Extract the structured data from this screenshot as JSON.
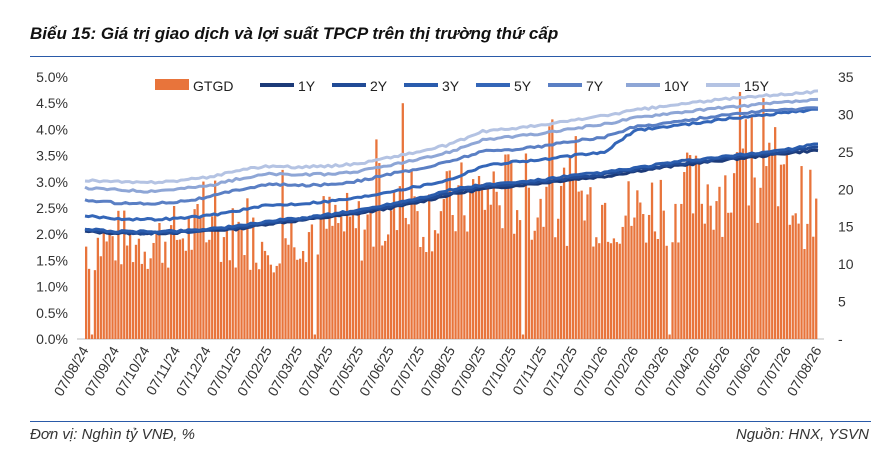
{
  "title": "Biểu 15: Giá trị giao dịch và lợi suất TPCP trên thị trường thứ cấp",
  "footer": {
    "unit": "Đơn vị: Nghìn tỷ VNĐ, %",
    "source": "Nguồn: HNX, YSVN"
  },
  "colors": {
    "bars": "#e8743b",
    "1Y": "#1c3a78",
    "2Y": "#214b96",
    "3Y": "#2a5cad",
    "5Y": "#3466b8",
    "7Y": "#5a7fc4",
    "10Y": "#8ea6d6",
    "15Y": "#b4c3e3"
  },
  "chart_data": {
    "type": "bar+line",
    "x_ticks": [
      "07/08/24",
      "07/09/24",
      "07/10/24",
      "07/11/24",
      "07/12/24",
      "07/01/25",
      "07/02/25",
      "07/03/25",
      "07/04/25",
      "07/05/25",
      "07/06/25",
      "07/07/25",
      "07/08/25",
      "07/09/25",
      "07/10/25",
      "07/11/25",
      "07/12/25",
      "07/01/26",
      "07/02/26",
      "07/03/26",
      "07/04/26",
      "07/05/26",
      "07/06/26",
      "07/07/26",
      "07/08/26"
    ],
    "y_left": {
      "ticks": [
        "0.0%",
        "0.5%",
        "1.0%",
        "1.5%",
        "2.0%",
        "2.5%",
        "3.0%",
        "3.5%",
        "4.0%",
        "4.5%",
        "5.0%"
      ],
      "range": [
        0,
        5
      ]
    },
    "y_right": {
      "ticks": [
        "-",
        "5",
        "10",
        "15",
        "20",
        "25",
        "30",
        "35"
      ],
      "range": [
        0,
        35
      ]
    },
    "legend": [
      "GTGD",
      "1Y",
      "2Y",
      "3Y",
      "5Y",
      "7Y",
      "10Y",
      "15Y"
    ],
    "bars": {
      "name": "GTGD",
      "axis": "right",
      "monthly_avg": [
        13.5,
        14.5,
        14.0,
        15.0,
        15.5,
        15.0,
        14.0,
        16.0,
        16.5,
        16.0,
        17.5,
        18.0,
        19.0,
        21.0,
        21.0,
        20.0,
        20.0,
        19.5,
        18.0,
        20.0,
        21.0,
        22.0,
        22.5,
        21.5,
        18.0
      ],
      "peak": 31.5
    },
    "series": [
      {
        "name": "1Y",
        "axis": "left",
        "values": [
          2.05,
          2.02,
          2.02,
          2.03,
          2.07,
          2.1,
          2.2,
          2.26,
          2.33,
          2.4,
          2.5,
          2.62,
          2.76,
          2.86,
          2.92,
          2.98,
          3.05,
          3.1,
          3.2,
          3.28,
          3.35,
          3.42,
          3.48,
          3.55,
          3.6
        ]
      },
      {
        "name": "2Y",
        "axis": "left",
        "values": [
          2.08,
          2.03,
          2.02,
          2.03,
          2.08,
          2.12,
          2.22,
          2.28,
          2.36,
          2.43,
          2.54,
          2.66,
          2.8,
          2.9,
          2.95,
          3.0,
          3.08,
          3.14,
          3.23,
          3.31,
          3.38,
          3.45,
          3.51,
          3.58,
          3.66
        ]
      },
      {
        "name": "3Y",
        "axis": "left",
        "values": [
          2.1,
          2.05,
          2.05,
          2.06,
          2.1,
          2.15,
          2.25,
          2.3,
          2.38,
          2.46,
          2.58,
          2.7,
          2.85,
          2.94,
          2.98,
          3.04,
          3.12,
          3.18,
          3.26,
          3.35,
          3.42,
          3.48,
          3.55,
          3.62,
          3.72
        ]
      },
      {
        "name": "5Y",
        "axis": "left",
        "values": [
          2.35,
          2.3,
          2.28,
          2.3,
          2.35,
          2.45,
          2.55,
          2.58,
          2.63,
          2.7,
          2.82,
          2.92,
          3.05,
          3.3,
          3.38,
          3.42,
          3.5,
          3.56,
          3.98,
          4.05,
          4.12,
          4.2,
          4.26,
          4.33,
          4.38
        ]
      },
      {
        "name": "7Y",
        "axis": "left",
        "values": [
          2.65,
          2.6,
          2.58,
          2.62,
          2.7,
          2.85,
          2.95,
          2.93,
          2.95,
          3.02,
          3.15,
          3.25,
          3.4,
          3.58,
          3.62,
          3.68,
          3.78,
          3.85,
          4.05,
          4.12,
          4.2,
          4.28,
          4.34,
          4.38,
          4.4
        ]
      },
      {
        "name": "10Y",
        "axis": "left",
        "values": [
          2.88,
          2.85,
          2.82,
          2.86,
          2.92,
          3.05,
          3.15,
          3.13,
          3.15,
          3.2,
          3.32,
          3.43,
          3.58,
          3.8,
          3.86,
          3.92,
          4.02,
          4.1,
          4.22,
          4.3,
          4.36,
          4.42,
          4.47,
          4.52,
          4.56
        ]
      },
      {
        "name": "15Y",
        "axis": "left",
        "values": [
          3.03,
          3.0,
          2.98,
          3.02,
          3.08,
          3.22,
          3.3,
          3.28,
          3.3,
          3.35,
          3.47,
          3.58,
          3.72,
          3.96,
          4.02,
          4.08,
          4.18,
          4.26,
          4.37,
          4.44,
          4.52,
          4.58,
          4.63,
          4.68,
          4.72
        ]
      }
    ]
  }
}
